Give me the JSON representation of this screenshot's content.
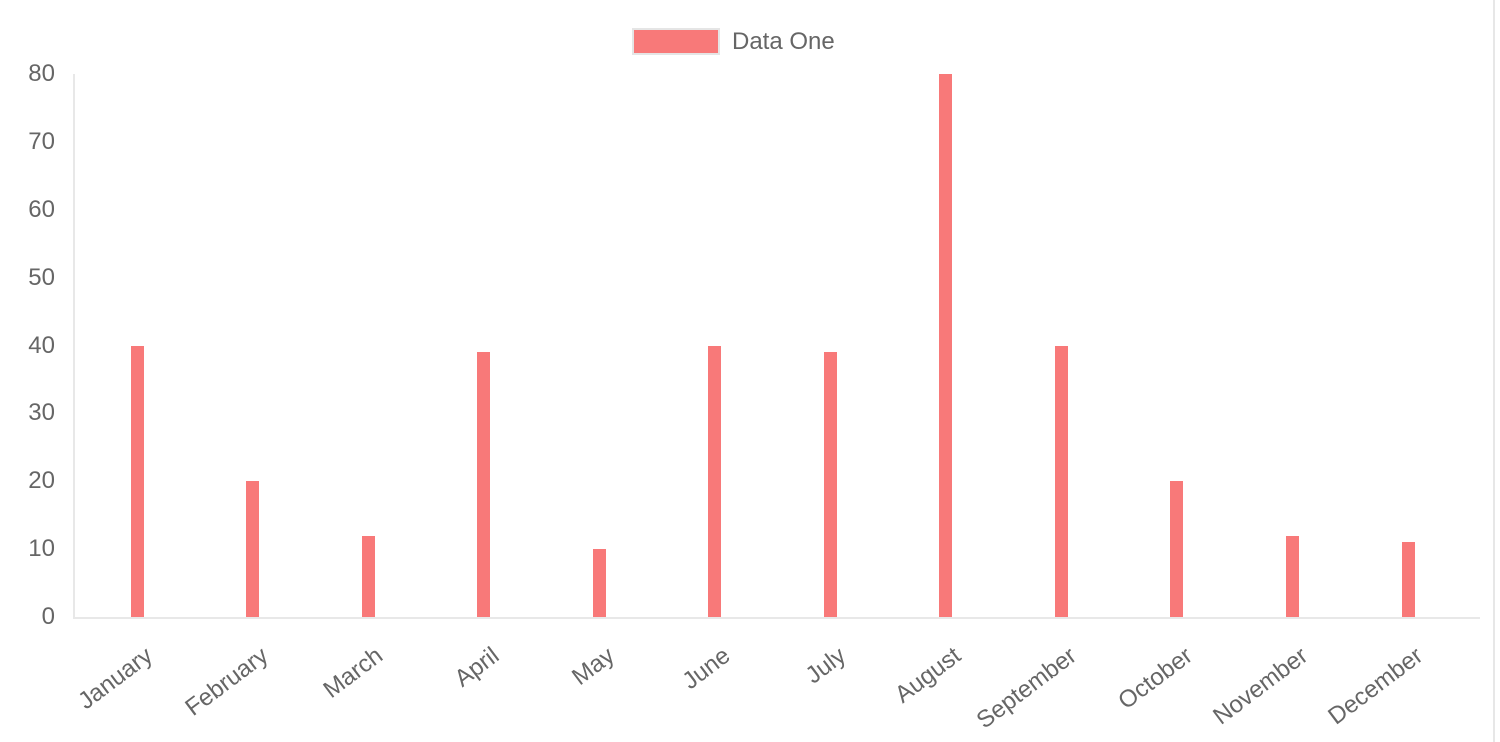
{
  "chart_data": {
    "type": "bar",
    "title": "",
    "categories": [
      "January",
      "February",
      "March",
      "April",
      "May",
      "June",
      "July",
      "August",
      "September",
      "October",
      "November",
      "December"
    ],
    "series": [
      {
        "name": "Data One",
        "color": "#f87979",
        "values": [
          40,
          20,
          12,
          39,
          10,
          40,
          39,
          80,
          40,
          20,
          12,
          11
        ]
      }
    ],
    "xlabel": "",
    "ylabel": "",
    "ylim": [
      0,
      80
    ],
    "y_ticks": [
      0,
      10,
      20,
      30,
      40,
      50,
      60,
      70,
      80
    ],
    "grid": false,
    "legend_position": "top-center",
    "x_tick_rotation_deg": -37
  },
  "colors": {
    "bar": "#f87979",
    "axis_line": "#e8e8e8",
    "tick_text": "#666666",
    "legend_text": "#666666",
    "swatch_border": "#e5e5e5",
    "container_border": "#e7e7e7",
    "background": "#ffffff"
  }
}
